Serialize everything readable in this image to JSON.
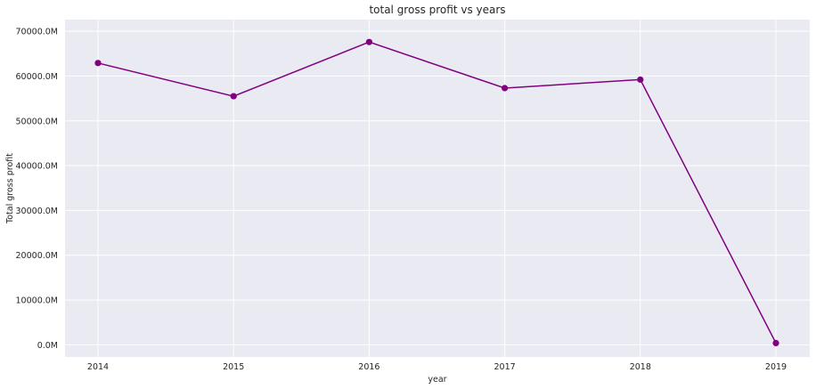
{
  "chart_data": {
    "type": "line",
    "title": "total gross profit vs years",
    "xlabel": "year",
    "ylabel": "Total gross profit",
    "x": [
      "2014",
      "2015",
      "2016",
      "2017",
      "2018",
      "2019"
    ],
    "series": [
      {
        "values": [
          62900,
          55500,
          67600,
          57300,
          59200,
          400
        ]
      }
    ],
    "yticks": [
      0,
      10000,
      20000,
      30000,
      40000,
      50000,
      60000,
      70000
    ],
    "ytick_labels": [
      "0.0M",
      "10000.0M",
      "20000.0M",
      "30000.0M",
      "40000.0M",
      "50000.0M",
      "60000.0M",
      "70000.0M"
    ],
    "ylim": [
      -2700,
      72600
    ],
    "grid": true,
    "line_color": "#800080",
    "background_color": "#eaeaf2"
  }
}
